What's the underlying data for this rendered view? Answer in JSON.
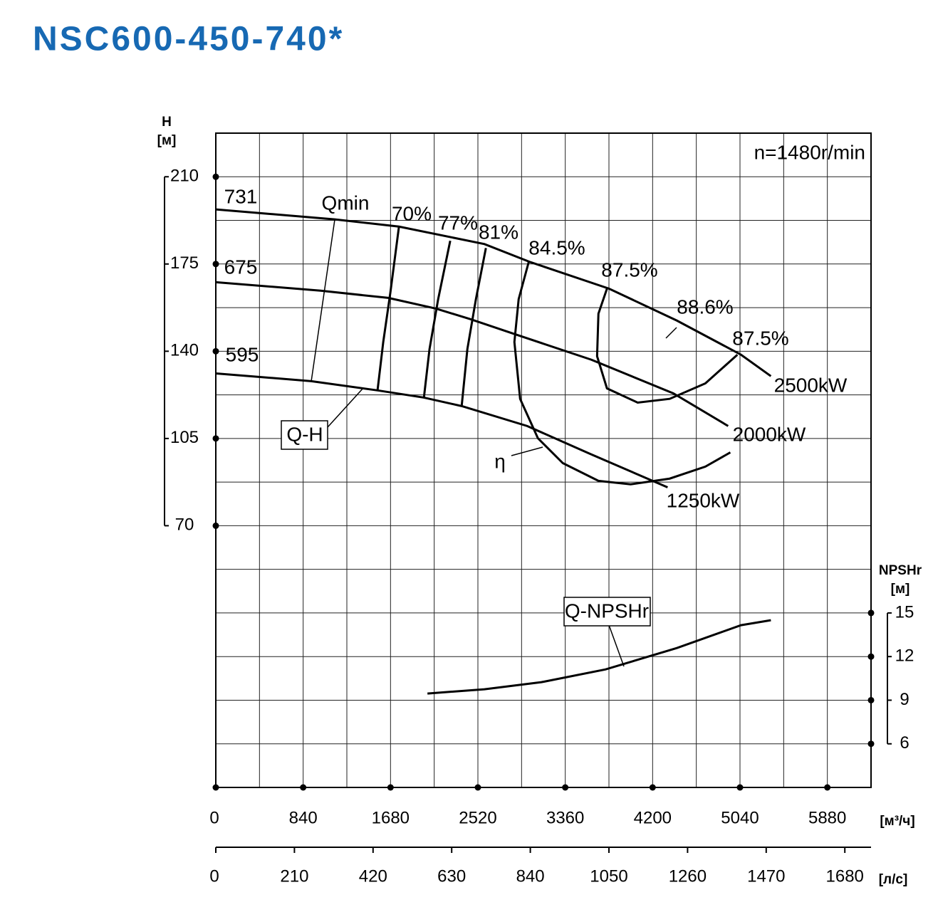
{
  "chart_data": {
    "type": "line",
    "title": "NSC600-450-740*",
    "speed_label": "n=1480r/min",
    "y_label": "H",
    "y_unit": "[м]",
    "y2_label": "NPSHr",
    "y2_unit": "[м]",
    "x_unit": "[м³/ч]",
    "x2_unit": "[л/с]",
    "xlim": [
      0,
      6300
    ],
    "xticks": [
      0,
      840,
      1680,
      2520,
      3360,
      4200,
      5040,
      5880
    ],
    "x2lim": [
      0,
      1750
    ],
    "x2ticks": [
      0,
      210,
      420,
      630,
      840,
      1050,
      1260,
      1470,
      1680
    ],
    "ylim": [
      -35,
      227.5
    ],
    "yticks": [
      70,
      105,
      140,
      175,
      210
    ],
    "y2lim": [
      3,
      48
    ],
    "y2ticks": [
      6,
      9,
      12,
      15
    ],
    "xgrid": [
      0,
      420,
      840,
      1260,
      1680,
      2100,
      2520,
      2940,
      3360,
      3780,
      4200,
      4620,
      5040,
      5460,
      5880,
      6300
    ],
    "ygrid": [
      -35,
      -17.5,
      0,
      17.5,
      35,
      52.5,
      70,
      87.5,
      105,
      122.5,
      140,
      157.5,
      175,
      192.5,
      210,
      227.5
    ],
    "series": [
      {
        "name": "731",
        "power": "2500kW",
        "color": "#000000",
        "x": [
          0,
          1144,
          1761,
          2583,
          3028,
          3782,
          4433,
          5050,
          5337
        ],
        "values": [
          196.9,
          192.9,
          190,
          183,
          175.7,
          165.1,
          152.3,
          138.6,
          130
        ]
      },
      {
        "name": "675",
        "power": "2000kW",
        "color": "#000000",
        "x": [
          0,
          1007,
          1658,
          2117,
          2446,
          2857,
          3611,
          4399,
          4926
        ],
        "values": [
          167.7,
          164.3,
          161.4,
          157.1,
          152.9,
          147.1,
          136.6,
          123.1,
          110
        ]
      },
      {
        "name": "595",
        "power": "1250kW",
        "color": "#000000",
        "x": [
          0,
          918,
          1555,
          2001,
          2364,
          2994,
          3611,
          4344
        ],
        "values": [
          131.1,
          128,
          124.3,
          121.4,
          118,
          110,
          98.6,
          85.4
        ]
      }
    ],
    "qmin": {
      "name": "Qmin",
      "x": [
        1144,
        918
      ],
      "values": [
        192.9,
        128
      ]
    },
    "efficiency": [
      {
        "name": "70%",
        "x": [
          1761,
          1679,
          1610,
          1555
        ],
        "values": [
          190,
          163.7,
          143.7,
          124.3
        ]
      },
      {
        "name": "77%",
        "x": [
          2254,
          2138,
          2055,
          2001
        ],
        "values": [
          184.3,
          160.9,
          140.9,
          121.4
        ]
      },
      {
        "name": "81%",
        "x": [
          2597,
          2501,
          2419,
          2364
        ],
        "values": [
          181.4,
          160.9,
          140.9,
          118
        ]
      },
      {
        "name": "84.5%",
        "x": [
          3008,
          2912,
          2871,
          2926,
          3097,
          3337,
          3679,
          3988,
          4364,
          4707,
          4947
        ],
        "values": [
          175.7,
          160.9,
          143.7,
          120.9,
          105.1,
          95.1,
          88,
          86.6,
          88.9,
          93.7,
          99.4
        ]
      },
      {
        "name": "87.5%",
        "x": [
          3761,
          3679,
          3666,
          3761,
          4056,
          4364,
          4707,
          5015
        ],
        "values": [
          165.1,
          155.1,
          138,
          125.1,
          119.4,
          120.9,
          127.1,
          138.6
        ]
      }
    ],
    "peak_efficiency": "88.6%",
    "npshr": {
      "name": "Q-NPSHr",
      "axis": "y2",
      "x": [
        2035,
        2583,
        3131,
        3748,
        4433,
        5050,
        5337
      ],
      "values": [
        9.46,
        9.75,
        10.24,
        11.12,
        12.59,
        14.16,
        14.5
      ]
    },
    "qh_label": "Q-H",
    "eta_label": "η"
  }
}
